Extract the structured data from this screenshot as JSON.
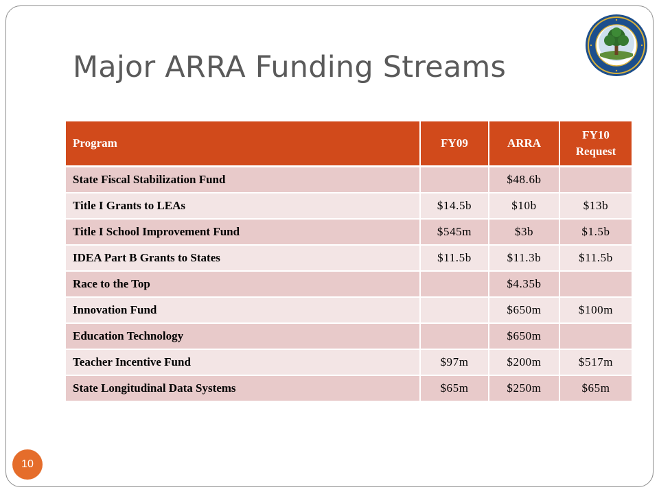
{
  "slide": {
    "title": "Major ARRA Funding Streams",
    "slide_number": "10",
    "seal_icon": "department-of-education-seal",
    "colors": {
      "header_bg": "#d14a1b",
      "row_dark": "#e8caca",
      "row_light": "#f3e5e5",
      "badge": "#e56d2b",
      "title_text": "#5a5a5a"
    }
  },
  "table": {
    "headers": {
      "program": "Program",
      "fy09": "FY09",
      "arra": "ARRA",
      "fy10_line1": "FY10",
      "fy10_line2": "Request"
    },
    "rows": [
      {
        "program": "State Fiscal Stabilization Fund",
        "fy09": "",
        "arra": "$48.6b",
        "fy10": ""
      },
      {
        "program": "Title I Grants to LEAs",
        "fy09": "$14.5b",
        "arra": "$10b",
        "fy10": "$13b"
      },
      {
        "program": "Title I School Improvement Fund",
        "fy09": "$545m",
        "arra": "$3b",
        "fy10": "$1.5b"
      },
      {
        "program": "IDEA Part B Grants to States",
        "fy09": "$11.5b",
        "arra": "$11.3b",
        "fy10": "$11.5b"
      },
      {
        "program": "Race to the Top",
        "fy09": "",
        "arra": "$4.35b",
        "fy10": ""
      },
      {
        "program": "Innovation Fund",
        "fy09": "",
        "arra": "$650m",
        "fy10": "$100m"
      },
      {
        "program": "Education Technology",
        "fy09": "",
        "arra": "$650m",
        "fy10": ""
      },
      {
        "program": "Teacher Incentive Fund",
        "fy09": "$97m",
        "arra": "$200m",
        "fy10": "$517m"
      },
      {
        "program": "State Longitudinal Data Systems",
        "fy09": "$65m",
        "arra": "$250m",
        "fy10": "$65m"
      }
    ]
  }
}
